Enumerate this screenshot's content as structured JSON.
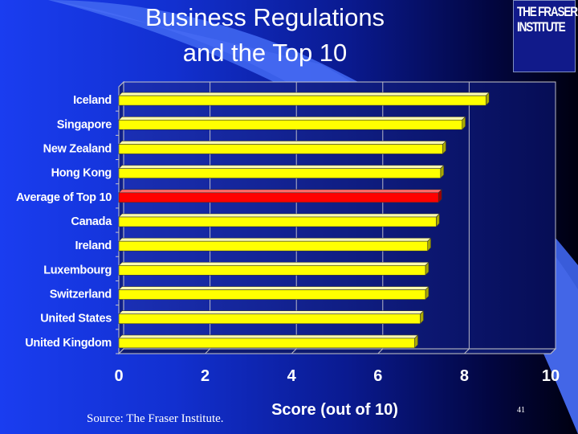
{
  "slide": {
    "title_line1": "Business Regulations",
    "title_line2": "and the Top 10",
    "logo_line1": "THE FRASER",
    "logo_line2": "INSTITUTE",
    "source": "Source: The Fraser Institute.",
    "page_number": "41"
  },
  "colors": {
    "bar": "#ffff00",
    "highlight_bar": "#ff0000",
    "label": "#ffffff"
  },
  "chart_data": {
    "type": "bar",
    "orientation": "horizontal",
    "title": "",
    "xlabel": "Score (out of 10)",
    "ylabel": "",
    "xlim": [
      0,
      10
    ],
    "xticks": [
      "0",
      "2",
      "4",
      "6",
      "8",
      "10"
    ],
    "grid": true,
    "categories": [
      "Iceland",
      "Singapore",
      "New Zealand",
      "Hong Kong",
      "Average of Top 10",
      "Canada",
      "Ireland",
      "Luxembourg",
      "Switzerland",
      "United States",
      "United Kingdom"
    ],
    "values": [
      8.5,
      7.95,
      7.5,
      7.45,
      7.4,
      7.35,
      7.15,
      7.1,
      7.1,
      6.98,
      6.85
    ],
    "highlight_index": 4
  }
}
